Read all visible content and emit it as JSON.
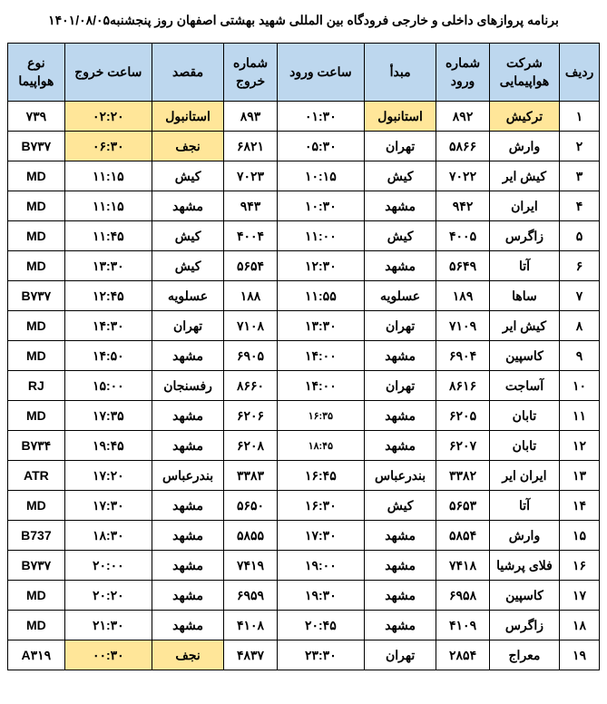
{
  "title": "برنامه پروازهای داخلی و خارجی فرودگاه بین المللی شهید بهشتی اصفهان روز پنجشنبه۱۴۰۱/۰۸/۰۵",
  "headers": {
    "row": "ردیف",
    "airline": "شرکت هواپیمایی",
    "arr_num": "شماره ورود",
    "origin": "مبدأ",
    "arr_time": "ساعت ورود",
    "dep_num": "شماره خروج",
    "dest": "مقصد",
    "dep_time": "ساعت خروج",
    "type": "نوع هواپیما"
  },
  "colors": {
    "header_bg": "#bdd7ee",
    "highlight_bg": "#ffe699",
    "cell_bg": "#ffffff",
    "border": "#000000",
    "text": "#000000"
  },
  "rows": [
    {
      "n": "۱",
      "airline": "ترکیش",
      "arr_num": "۸۹۲",
      "origin": "استانبول",
      "arr_time": "۰۱:۳۰",
      "dep_num": "۸۹۳",
      "dest": "استانبول",
      "dep_time": "۰۲:۲۰",
      "type": "۷۳۹",
      "airline_hl": true,
      "origin_hl": true,
      "dest_hl": true,
      "dep_time_hl": true
    },
    {
      "n": "۲",
      "airline": "وارش",
      "arr_num": "۵۸۶۶",
      "origin": "تهران",
      "arr_time": "۰۵:۳۰",
      "dep_num": "۶۸۲۱",
      "dest": "نجف",
      "dep_time": "۰۶:۳۰",
      "type": "B۷۳۷",
      "dest_hl": true,
      "dep_time_hl": true
    },
    {
      "n": "۳",
      "airline": "کیش ایر",
      "arr_num": "۷۰۲۲",
      "origin": "کیش",
      "arr_time": "۱۰:۱۵",
      "dep_num": "۷۰۲۳",
      "dest": "کیش",
      "dep_time": "۱۱:۱۵",
      "type": "MD"
    },
    {
      "n": "۴",
      "airline": "ایران",
      "arr_num": "۹۴۲",
      "origin": "مشهد",
      "arr_time": "۱۰:۳۰",
      "dep_num": "۹۴۳",
      "dest": "مشهد",
      "dep_time": "۱۱:۱۵",
      "type": "MD"
    },
    {
      "n": "۵",
      "airline": "زاگرس",
      "arr_num": "۴۰۰۵",
      "origin": "کیش",
      "arr_time": "۱۱:۰۰",
      "dep_num": "۴۰۰۴",
      "dest": "کیش",
      "dep_time": "۱۱:۴۵",
      "type": "MD"
    },
    {
      "n": "۶",
      "airline": "آتا",
      "arr_num": "۵۶۴۹",
      "origin": "مشهد",
      "arr_time": "۱۲:۳۰",
      "dep_num": "۵۶۵۴",
      "dest": "کیش",
      "dep_time": "۱۳:۳۰",
      "type": "MD"
    },
    {
      "n": "۷",
      "airline": "ساها",
      "arr_num": "۱۸۹",
      "origin": "عسلویه",
      "arr_time": "۱۱:۵۵",
      "dep_num": "۱۸۸",
      "dest": "عسلویه",
      "dep_time": "۱۲:۴۵",
      "type": "B۷۳۷"
    },
    {
      "n": "۸",
      "airline": "کیش ایر",
      "arr_num": "۷۱۰۹",
      "origin": "تهران",
      "arr_time": "۱۳:۳۰",
      "dep_num": "۷۱۰۸",
      "dest": "تهران",
      "dep_time": "۱۴:۳۰",
      "type": "MD"
    },
    {
      "n": "۹",
      "airline": "کاسپین",
      "arr_num": "۶۹۰۴",
      "origin": "مشهد",
      "arr_time": "۱۴:۰۰",
      "dep_num": "۶۹۰۵",
      "dest": "مشهد",
      "dep_time": "۱۴:۵۰",
      "type": "MD"
    },
    {
      "n": "۱۰",
      "airline": "آساجت",
      "arr_num": "۸۶۱۶",
      "origin": "تهران",
      "arr_time": "۱۴:۰۰",
      "dep_num": "۸۶۶۰",
      "dest": "رفسنجان",
      "dep_time": "۱۵:۰۰",
      "type": "RJ"
    },
    {
      "n": "۱۱",
      "airline": "تابان",
      "arr_num": "۶۲۰۵",
      "origin": "مشهد",
      "arr_time": "۱۶:۳۵",
      "dep_num": "۶۲۰۶",
      "dest": "مشهد",
      "dep_time": "۱۷:۳۵",
      "type": "MD",
      "arr_time_small": true
    },
    {
      "n": "۱۲",
      "airline": "تابان",
      "arr_num": "۶۲۰۷",
      "origin": "مشهد",
      "arr_time": "۱۸:۴۵",
      "dep_num": "۶۲۰۸",
      "dest": "مشهد",
      "dep_time": "۱۹:۴۵",
      "type": "B۷۳۴",
      "arr_time_small": true
    },
    {
      "n": "۱۳",
      "airline": "ایران ایر",
      "arr_num": "۳۳۸۲",
      "origin": "بندرعباس",
      "arr_time": "۱۶:۴۵",
      "dep_num": "۳۳۸۳",
      "dest": "بندرعباس",
      "dep_time": "۱۷:۲۰",
      "type": "ATR"
    },
    {
      "n": "۱۴",
      "airline": "آتا",
      "arr_num": "۵۶۵۳",
      "origin": "کیش",
      "arr_time": "۱۶:۳۰",
      "dep_num": "۵۶۵۰",
      "dest": "مشهد",
      "dep_time": "۱۷:۳۰",
      "type": "MD"
    },
    {
      "n": "۱۵",
      "airline": "وارش",
      "arr_num": "۵۸۵۴",
      "origin": "مشهد",
      "arr_time": "۱۷:۳۰",
      "dep_num": "۵۸۵۵",
      "dest": "مشهد",
      "dep_time": "۱۸:۳۰",
      "type": "B737"
    },
    {
      "n": "۱۶",
      "airline": "فلای پرشیا",
      "arr_num": "۷۴۱۸",
      "origin": "مشهد",
      "arr_time": "۱۹:۰۰",
      "dep_num": "۷۴۱۹",
      "dest": "مشهد",
      "dep_time": "۲۰:۰۰",
      "type": "B۷۳۷"
    },
    {
      "n": "۱۷",
      "airline": "کاسپین",
      "arr_num": "۶۹۵۸",
      "origin": "مشهد",
      "arr_time": "۱۹:۳۰",
      "dep_num": "۶۹۵۹",
      "dest": "مشهد",
      "dep_time": "۲۰:۲۰",
      "type": "MD"
    },
    {
      "n": "۱۸",
      "airline": "زاگرس",
      "arr_num": "۴۱۰۹",
      "origin": "مشهد",
      "arr_time": "۲۰:۴۵",
      "dep_num": "۴۱۰۸",
      "dest": "مشهد",
      "dep_time": "۲۱:۳۰",
      "type": "MD"
    },
    {
      "n": "۱۹",
      "airline": "معراج",
      "arr_num": "۲۸۵۴",
      "origin": "تهران",
      "arr_time": "۲۳:۳۰",
      "dep_num": "۴۸۳۷",
      "dest": "نجف",
      "dep_time": "۰۰:۳۰",
      "type": "A۳۱۹",
      "dest_hl": true,
      "dep_time_hl": true
    }
  ]
}
